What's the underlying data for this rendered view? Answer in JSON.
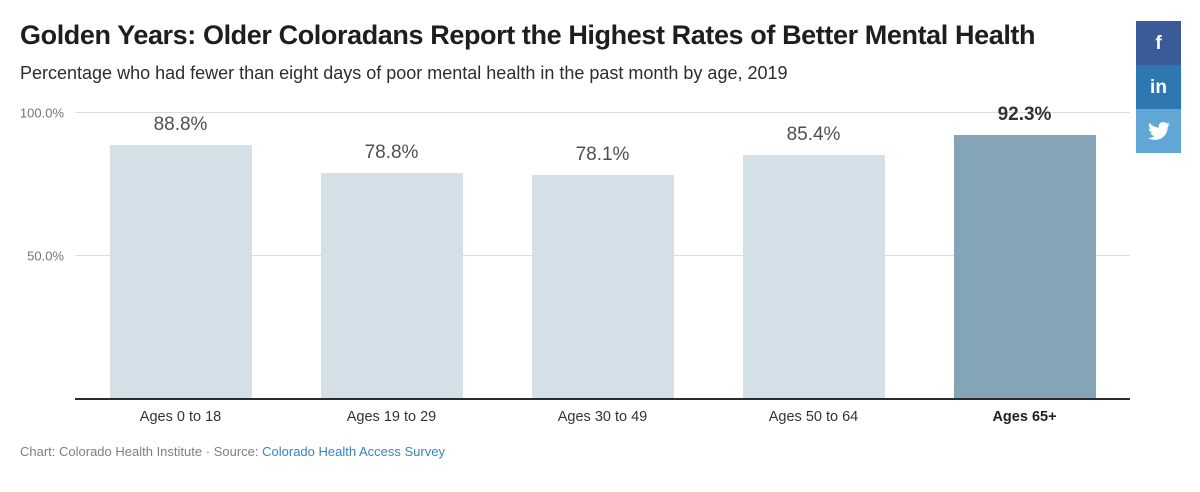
{
  "header": {
    "title": "Golden Years: Older Coloradans Report the Highest Rates of Better Mental Health",
    "subtitle": "Percentage who had fewer than eight days of poor mental health in the past month by age, 2019"
  },
  "share_buttons": [
    {
      "name": "facebook",
      "glyph": "f",
      "color": "#3b5b98"
    },
    {
      "name": "linkedin",
      "glyph": "in",
      "color": "#2e77b2"
    },
    {
      "name": "twitter",
      "glyph": "",
      "color": "#61a7d6"
    }
  ],
  "chart_data": {
    "type": "bar",
    "title": "Golden Years: Older Coloradans Report the Highest Rates of Better Mental Health",
    "subtitle": "Percentage who had fewer than eight days of poor mental health in the past month by age, 2019",
    "categories": [
      "Ages 0 to 18",
      "Ages 19 to 29",
      "Ages 30 to 49",
      "Ages 50 to 64",
      "Ages 65+"
    ],
    "values": [
      88.8,
      78.8,
      78.1,
      85.4,
      92.3
    ],
    "value_labels": [
      "88.8%",
      "78.8%",
      "78.1%",
      "85.4%",
      "92.3%"
    ],
    "highlighted_index": 4,
    "xlabel": "",
    "ylabel": "",
    "ylim": [
      0,
      100
    ],
    "y_ticks": [
      {
        "label": "50.0%",
        "value": 50
      },
      {
        "label": "100.0%",
        "value": 100
      }
    ],
    "grid": true,
    "legend": "none",
    "bar_color": "#d4e0e7",
    "highlight_color": "#84a4b8",
    "gridline_color": "#dcdcdc",
    "axis_color": "#2b2b2b"
  },
  "footer": {
    "chart_credit": "Chart: Colorado Health Institute",
    "separator": "·",
    "source_label": "Source:",
    "source_link": "Colorado Health Access Survey"
  }
}
